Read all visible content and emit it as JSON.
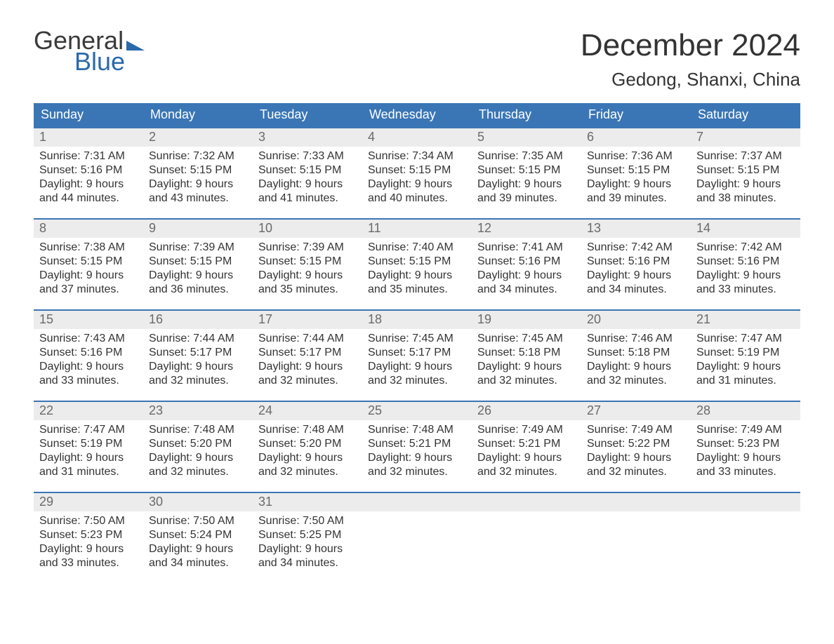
{
  "logo": {
    "word1": "General",
    "word2": "Blue"
  },
  "title": {
    "month": "December 2024",
    "location": "Gedong, Shanxi, China"
  },
  "colors": {
    "accent": "#3a76b6",
    "row_border": "#3a76b6",
    "daynum_bg": "#ececec",
    "daynum_color": "#6a6a6a",
    "text": "#323232",
    "background": "#ffffff"
  },
  "typography": {
    "month_fontsize": 44,
    "location_fontsize": 26,
    "dow_fontsize": 18,
    "daynum_fontsize": 18,
    "body_fontsize": 16,
    "font_family": "Arial"
  },
  "daysOfWeek": [
    "Sunday",
    "Monday",
    "Tuesday",
    "Wednesday",
    "Thursday",
    "Friday",
    "Saturday"
  ],
  "weeks": [
    [
      {
        "n": "1",
        "sunrise": "Sunrise: 7:31 AM",
        "sunset": "Sunset: 5:16 PM",
        "d1": "Daylight: 9 hours",
        "d2": "and 44 minutes."
      },
      {
        "n": "2",
        "sunrise": "Sunrise: 7:32 AM",
        "sunset": "Sunset: 5:15 PM",
        "d1": "Daylight: 9 hours",
        "d2": "and 43 minutes."
      },
      {
        "n": "3",
        "sunrise": "Sunrise: 7:33 AM",
        "sunset": "Sunset: 5:15 PM",
        "d1": "Daylight: 9 hours",
        "d2": "and 41 minutes."
      },
      {
        "n": "4",
        "sunrise": "Sunrise: 7:34 AM",
        "sunset": "Sunset: 5:15 PM",
        "d1": "Daylight: 9 hours",
        "d2": "and 40 minutes."
      },
      {
        "n": "5",
        "sunrise": "Sunrise: 7:35 AM",
        "sunset": "Sunset: 5:15 PM",
        "d1": "Daylight: 9 hours",
        "d2": "and 39 minutes."
      },
      {
        "n": "6",
        "sunrise": "Sunrise: 7:36 AM",
        "sunset": "Sunset: 5:15 PM",
        "d1": "Daylight: 9 hours",
        "d2": "and 39 minutes."
      },
      {
        "n": "7",
        "sunrise": "Sunrise: 7:37 AM",
        "sunset": "Sunset: 5:15 PM",
        "d1": "Daylight: 9 hours",
        "d2": "and 38 minutes."
      }
    ],
    [
      {
        "n": "8",
        "sunrise": "Sunrise: 7:38 AM",
        "sunset": "Sunset: 5:15 PM",
        "d1": "Daylight: 9 hours",
        "d2": "and 37 minutes."
      },
      {
        "n": "9",
        "sunrise": "Sunrise: 7:39 AM",
        "sunset": "Sunset: 5:15 PM",
        "d1": "Daylight: 9 hours",
        "d2": "and 36 minutes."
      },
      {
        "n": "10",
        "sunrise": "Sunrise: 7:39 AM",
        "sunset": "Sunset: 5:15 PM",
        "d1": "Daylight: 9 hours",
        "d2": "and 35 minutes."
      },
      {
        "n": "11",
        "sunrise": "Sunrise: 7:40 AM",
        "sunset": "Sunset: 5:15 PM",
        "d1": "Daylight: 9 hours",
        "d2": "and 35 minutes."
      },
      {
        "n": "12",
        "sunrise": "Sunrise: 7:41 AM",
        "sunset": "Sunset: 5:16 PM",
        "d1": "Daylight: 9 hours",
        "d2": "and 34 minutes."
      },
      {
        "n": "13",
        "sunrise": "Sunrise: 7:42 AM",
        "sunset": "Sunset: 5:16 PM",
        "d1": "Daylight: 9 hours",
        "d2": "and 34 minutes."
      },
      {
        "n": "14",
        "sunrise": "Sunrise: 7:42 AM",
        "sunset": "Sunset: 5:16 PM",
        "d1": "Daylight: 9 hours",
        "d2": "and 33 minutes."
      }
    ],
    [
      {
        "n": "15",
        "sunrise": "Sunrise: 7:43 AM",
        "sunset": "Sunset: 5:16 PM",
        "d1": "Daylight: 9 hours",
        "d2": "and 33 minutes."
      },
      {
        "n": "16",
        "sunrise": "Sunrise: 7:44 AM",
        "sunset": "Sunset: 5:17 PM",
        "d1": "Daylight: 9 hours",
        "d2": "and 32 minutes."
      },
      {
        "n": "17",
        "sunrise": "Sunrise: 7:44 AM",
        "sunset": "Sunset: 5:17 PM",
        "d1": "Daylight: 9 hours",
        "d2": "and 32 minutes."
      },
      {
        "n": "18",
        "sunrise": "Sunrise: 7:45 AM",
        "sunset": "Sunset: 5:17 PM",
        "d1": "Daylight: 9 hours",
        "d2": "and 32 minutes."
      },
      {
        "n": "19",
        "sunrise": "Sunrise: 7:45 AM",
        "sunset": "Sunset: 5:18 PM",
        "d1": "Daylight: 9 hours",
        "d2": "and 32 minutes."
      },
      {
        "n": "20",
        "sunrise": "Sunrise: 7:46 AM",
        "sunset": "Sunset: 5:18 PM",
        "d1": "Daylight: 9 hours",
        "d2": "and 32 minutes."
      },
      {
        "n": "21",
        "sunrise": "Sunrise: 7:47 AM",
        "sunset": "Sunset: 5:19 PM",
        "d1": "Daylight: 9 hours",
        "d2": "and 31 minutes."
      }
    ],
    [
      {
        "n": "22",
        "sunrise": "Sunrise: 7:47 AM",
        "sunset": "Sunset: 5:19 PM",
        "d1": "Daylight: 9 hours",
        "d2": "and 31 minutes."
      },
      {
        "n": "23",
        "sunrise": "Sunrise: 7:48 AM",
        "sunset": "Sunset: 5:20 PM",
        "d1": "Daylight: 9 hours",
        "d2": "and 32 minutes."
      },
      {
        "n": "24",
        "sunrise": "Sunrise: 7:48 AM",
        "sunset": "Sunset: 5:20 PM",
        "d1": "Daylight: 9 hours",
        "d2": "and 32 minutes."
      },
      {
        "n": "25",
        "sunrise": "Sunrise: 7:48 AM",
        "sunset": "Sunset: 5:21 PM",
        "d1": "Daylight: 9 hours",
        "d2": "and 32 minutes."
      },
      {
        "n": "26",
        "sunrise": "Sunrise: 7:49 AM",
        "sunset": "Sunset: 5:21 PM",
        "d1": "Daylight: 9 hours",
        "d2": "and 32 minutes."
      },
      {
        "n": "27",
        "sunrise": "Sunrise: 7:49 AM",
        "sunset": "Sunset: 5:22 PM",
        "d1": "Daylight: 9 hours",
        "d2": "and 32 minutes."
      },
      {
        "n": "28",
        "sunrise": "Sunrise: 7:49 AM",
        "sunset": "Sunset: 5:23 PM",
        "d1": "Daylight: 9 hours",
        "d2": "and 33 minutes."
      }
    ],
    [
      {
        "n": "29",
        "sunrise": "Sunrise: 7:50 AM",
        "sunset": "Sunset: 5:23 PM",
        "d1": "Daylight: 9 hours",
        "d2": "and 33 minutes."
      },
      {
        "n": "30",
        "sunrise": "Sunrise: 7:50 AM",
        "sunset": "Sunset: 5:24 PM",
        "d1": "Daylight: 9 hours",
        "d2": "and 34 minutes."
      },
      {
        "n": "31",
        "sunrise": "Sunrise: 7:50 AM",
        "sunset": "Sunset: 5:25 PM",
        "d1": "Daylight: 9 hours",
        "d2": "and 34 minutes."
      },
      {
        "n": "",
        "empty": true
      },
      {
        "n": "",
        "empty": true
      },
      {
        "n": "",
        "empty": true
      },
      {
        "n": "",
        "empty": true
      }
    ]
  ]
}
